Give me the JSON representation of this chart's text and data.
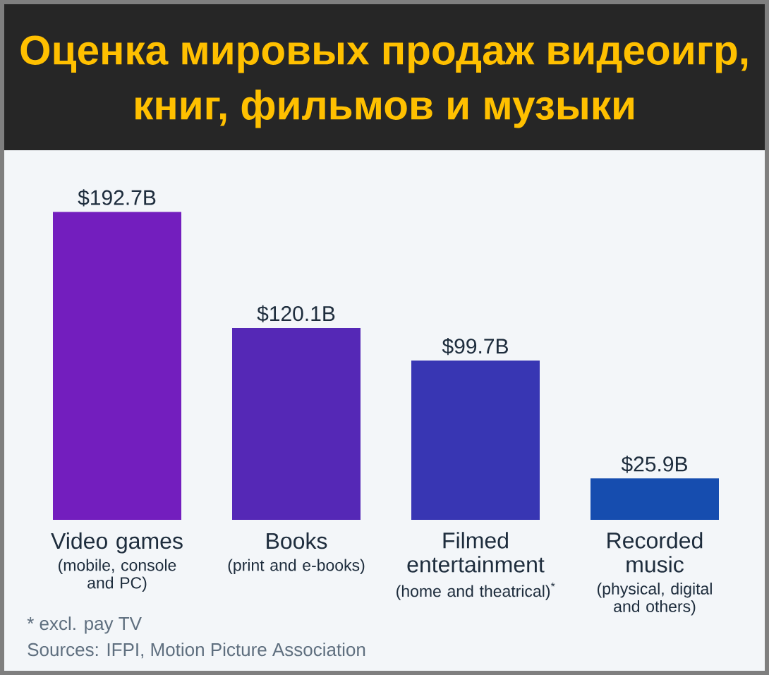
{
  "chart_data": {
    "type": "bar",
    "title": "Оценка мировых продаж видеоигр, книг, фильмов и музыки",
    "categories": [
      "Video games",
      "Books",
      "Filmed entertainment",
      "Recorded music"
    ],
    "values": [
      192.7,
      120.1,
      99.7,
      25.9
    ],
    "colors": [
      "#731EBE",
      "#5528B6",
      "#3836B3",
      "#164DAF"
    ],
    "value_labels": [
      "$192.7B",
      "$120.1B",
      "$99.7B",
      "$25.9B"
    ],
    "annotations": [
      "(mobile, console and PC)",
      "(print and e-books)",
      "(home and theatrical)$^{*}$",
      "(physical, digital and others)",
      "* excl. pay TV",
      "Sources: IFPI, Motion Picture Association"
    ]
  }
}
